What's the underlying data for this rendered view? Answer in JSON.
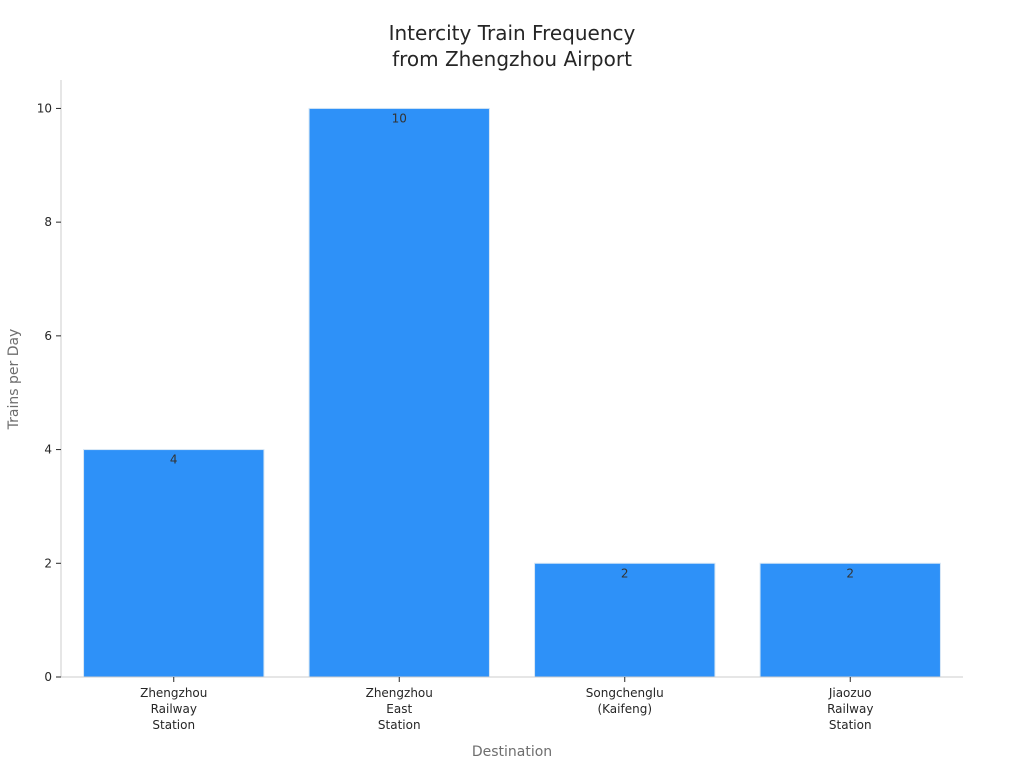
{
  "chart_data": {
    "type": "bar",
    "title": [
      "Intercity Train Frequency",
      "from Zhengzhou Airport"
    ],
    "xlabel": "Destination",
    "ylabel": "Trains per Day",
    "categories": [
      [
        "Zhengzhou",
        "Railway",
        "Station"
      ],
      [
        "Zhengzhou",
        "East",
        "Station"
      ],
      [
        "Songchenglu",
        "(Kaifeng)"
      ],
      [
        "Jiaozuo",
        "Railway",
        "Station"
      ]
    ],
    "values": [
      4,
      10,
      2,
      2
    ],
    "data_labels": [
      "4",
      "10",
      "2",
      "2"
    ],
    "ylim": [
      0,
      10.5
    ],
    "yticks": [
      0,
      2,
      4,
      6,
      8,
      10
    ],
    "grid": false,
    "legend": "none",
    "colors": {
      "bar": "#2e91f8",
      "bar_edge": "#d6e6f5",
      "axis": "#cccccc",
      "title": "#262626",
      "axis_label": "#6e6e6e"
    }
  }
}
